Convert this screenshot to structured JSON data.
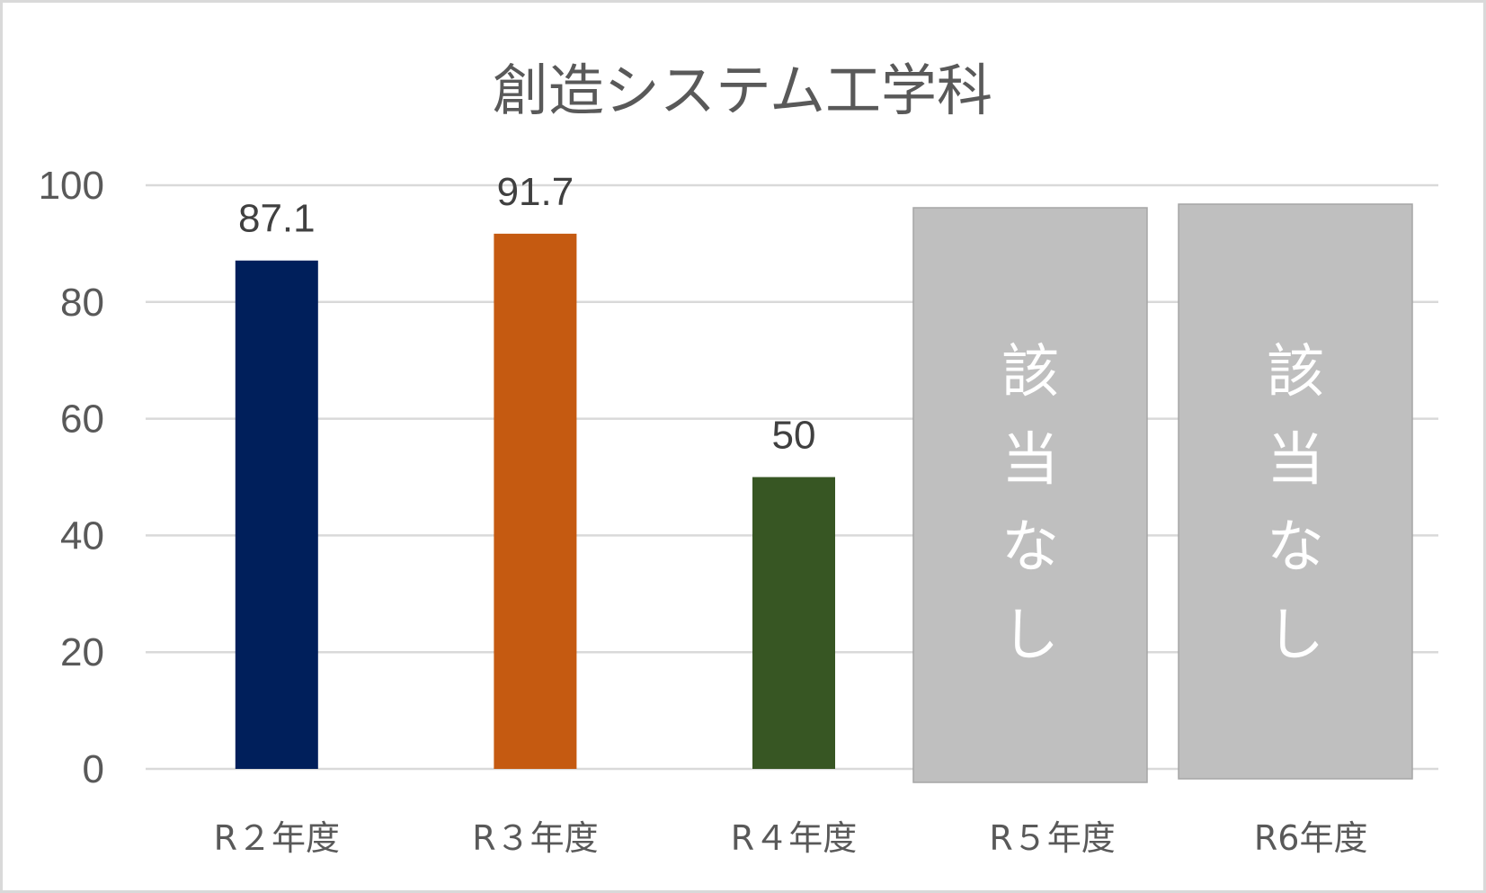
{
  "chart_data": {
    "type": "bar",
    "title": "創造システム工学科",
    "categories": [
      "R２年度",
      "R３年度",
      "R４年度",
      "R５年度",
      "R6年度"
    ],
    "values": [
      87.1,
      91.7,
      50,
      null,
      null
    ],
    "data_labels": [
      "87.1",
      "91.7",
      "50",
      "",
      ""
    ],
    "colors": [
      "#001f5b",
      "#c55a11",
      "#375623",
      "#bfbfbf",
      "#bfbfbf"
    ],
    "ylim": [
      0,
      100
    ],
    "yticks": [
      0,
      20,
      40,
      60,
      80,
      100
    ],
    "ytick_labels": [
      "0",
      "20",
      "40",
      "60",
      "80",
      "100"
    ],
    "grid": true,
    "legend": "none",
    "not_applicable": [
      {
        "category": "R５年度",
        "text": [
          "該",
          "当",
          "な",
          "し"
        ]
      },
      {
        "category": "R6年度",
        "text": [
          "該",
          "当",
          "な",
          "し"
        ]
      }
    ],
    "not_applicable_color": "#bfbfbf"
  }
}
